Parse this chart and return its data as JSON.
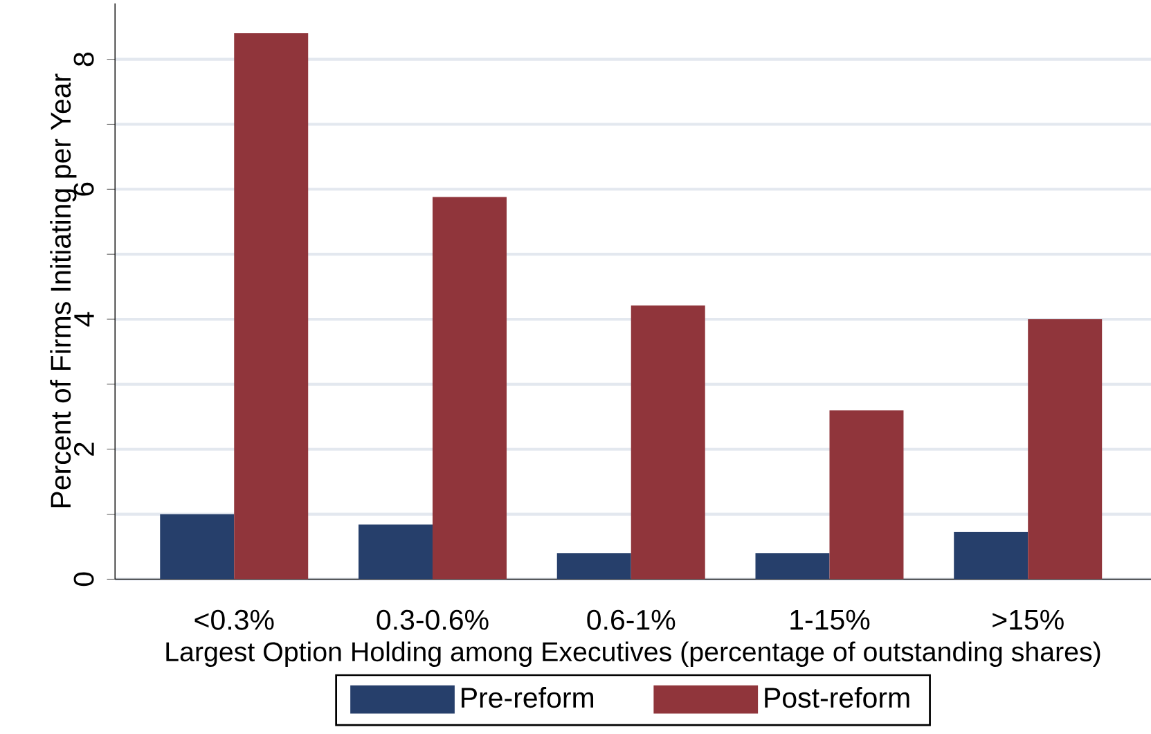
{
  "chart_data": {
    "type": "bar",
    "xlabel": "Largest Option Holding among Executives (percentage of outstanding shares)",
    "ylabel": "Percent of Firms Initiating per Year",
    "categories": [
      "<0.3%",
      "0.3-0.6%",
      "0.6-1%",
      "1-15%",
      ">15%"
    ],
    "series": [
      {
        "name": "Pre-reform",
        "color": "#263f6b",
        "values": [
          1.0,
          0.84,
          0.4,
          0.4,
          0.73
        ]
      },
      {
        "name": "Post-reform",
        "color": "#90353b",
        "values": [
          8.4,
          5.88,
          4.21,
          2.6,
          4.0
        ]
      }
    ],
    "ylim": [
      0,
      8.86
    ],
    "yticks": [
      0,
      {
        "value": 1,
        "label": null
      },
      2,
      {
        "value": 3,
        "label": null
      },
      4,
      {
        "value": 5,
        "label": null
      },
      6,
      {
        "value": 7,
        "label": null
      },
      8
    ],
    "grid": "y",
    "legend": "bottom"
  }
}
